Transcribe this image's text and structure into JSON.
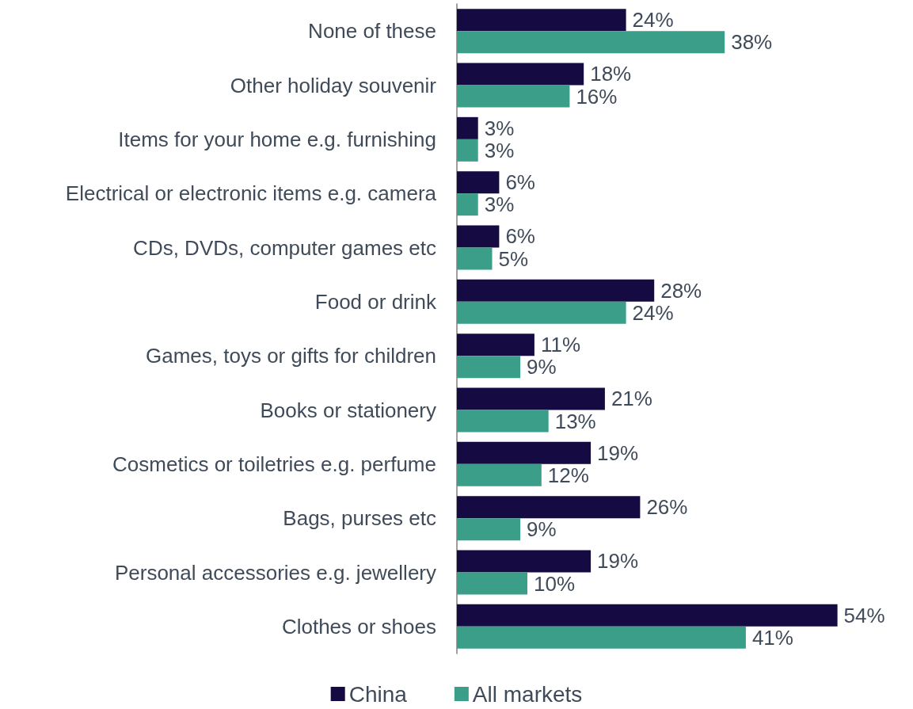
{
  "chart_data": {
    "type": "bar",
    "orientation": "horizontal",
    "legend": "bottom",
    "categories": [
      "None of these",
      "Other holiday souvenir",
      "Items for your home e.g. furnishing",
      "Electrical or electronic items e.g. camera",
      "CDs, DVDs, computer games etc",
      "Food or drink",
      "Games, toys or gifts for children",
      "Books or stationery",
      "Cosmetics or toiletries e.g. perfume",
      "Bags, purses etc",
      "Personal accessories e.g. jewellery",
      "Clothes or shoes"
    ],
    "series": [
      {
        "name": "China",
        "color": "#160a42",
        "values": [
          24,
          18,
          3,
          6,
          6,
          28,
          11,
          21,
          19,
          26,
          19,
          54
        ],
        "value_labels": [
          "24%",
          "18%",
          "3%",
          "6%",
          "6%",
          "28%",
          "11%",
          "21%",
          "19%",
          "26%",
          "19%",
          "54%"
        ]
      },
      {
        "name": "All markets",
        "color": "#3a9e88",
        "values": [
          38,
          16,
          3,
          3,
          5,
          24,
          9,
          13,
          12,
          9,
          10,
          41
        ],
        "value_labels": [
          "38%",
          "16%",
          "3%",
          "3%",
          "5%",
          "24%",
          "9%",
          "13%",
          "12%",
          "9%",
          "10%",
          "41%"
        ]
      }
    ]
  }
}
